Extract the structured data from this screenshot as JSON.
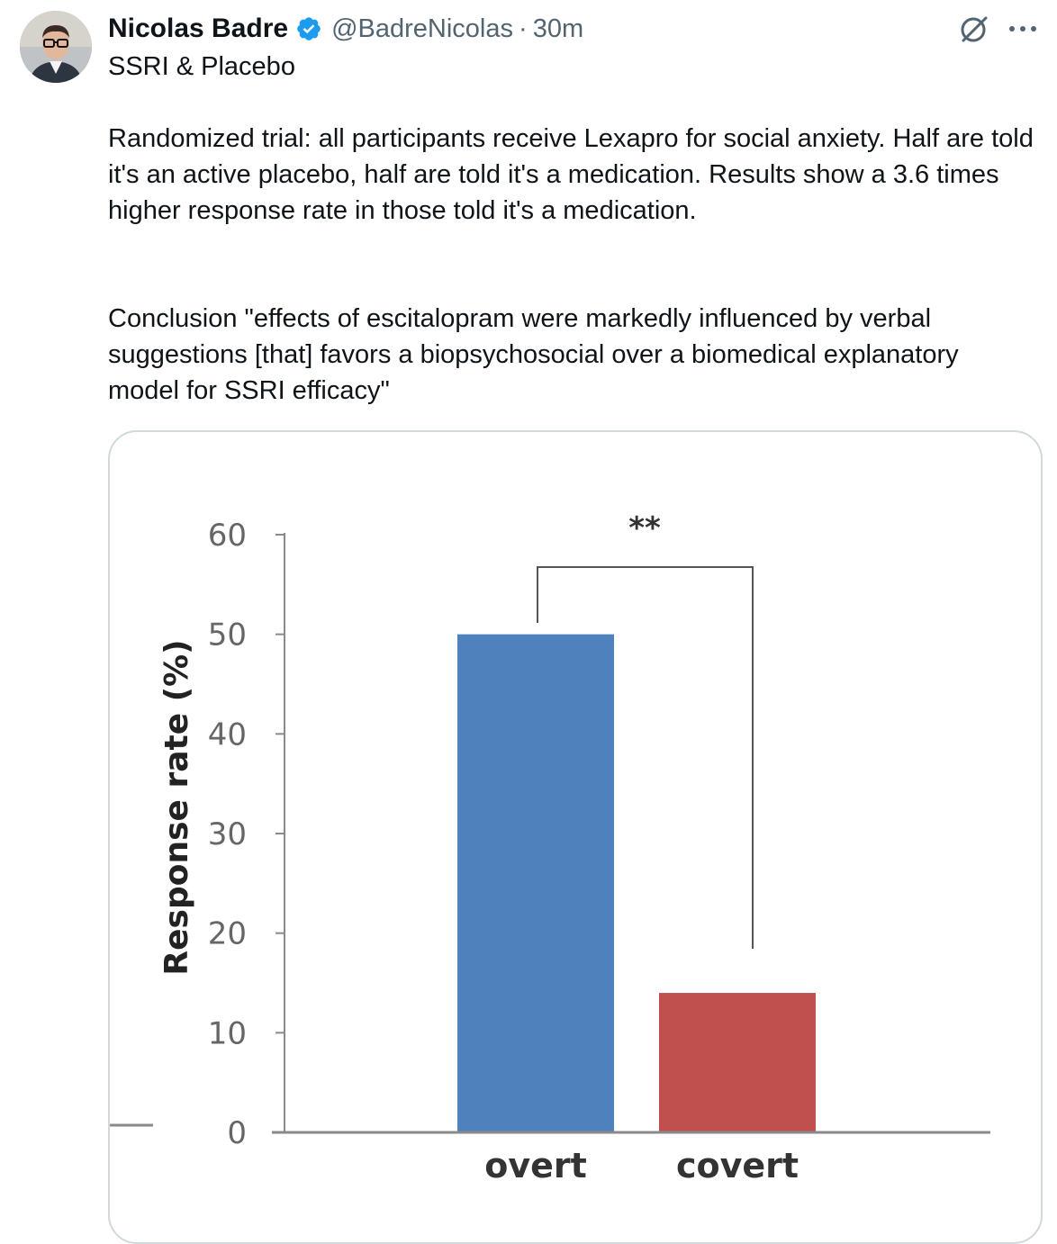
{
  "tweet": {
    "author_name": "Nicolas Badre",
    "handle": "@BadreNicolas",
    "separator": "·",
    "time": "30m",
    "title": "SSRI & Placebo",
    "paragraph1": "Randomized trial: all participants receive Lexapro for social anxiety. Half are told it's an active placebo, half are told it's a medication. Results show a 3.6 times higher response rate in those told it's a medication.",
    "paragraph2": "Conclusion \"effects of escitalopram were markedly influenced by verbal suggestions [that] favors a biopsychosocial over a biomedical explanatory model for SSRI efficacy\""
  },
  "icons": {
    "verified": "verified-badge-icon",
    "grok": "grok-icon",
    "more": "more-options-icon"
  },
  "colors": {
    "verified_blue": "#1d9bf0",
    "overt_bar": "#4f81bd",
    "covert_bar": "#c0504d"
  },
  "chart_data": {
    "type": "bar",
    "categories": [
      "overt",
      "covert"
    ],
    "values": [
      50,
      14
    ],
    "ylabel": "Response rate (%)",
    "xlabel": "",
    "ylim": [
      0,
      60
    ],
    "yticks": [
      0,
      10,
      20,
      30,
      40,
      50,
      60
    ],
    "significance": "**",
    "grid": false
  }
}
